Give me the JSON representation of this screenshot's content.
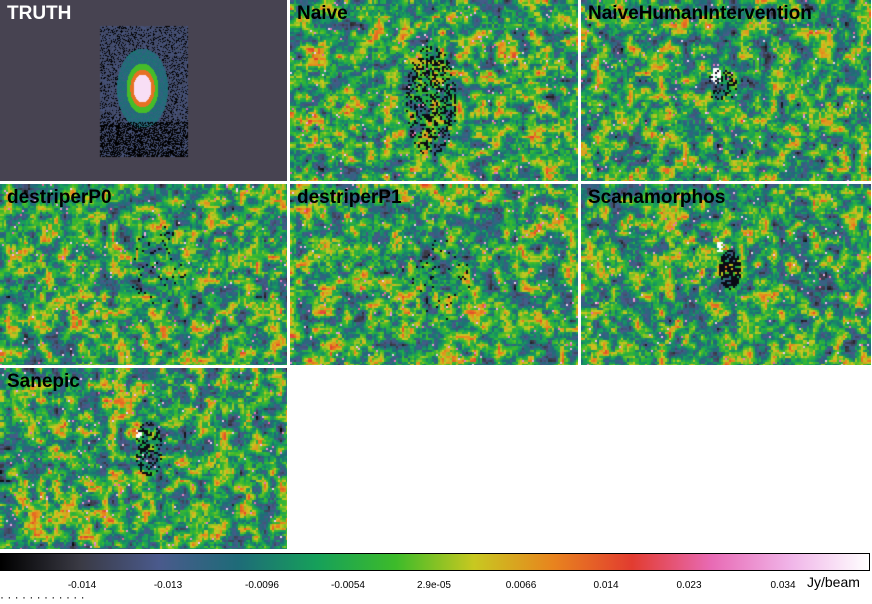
{
  "panels": [
    {
      "title": "TRUTH"
    },
    {
      "title": "Naive"
    },
    {
      "title": "NaiveHumanIntervention"
    },
    {
      "title": "destriperP0"
    },
    {
      "title": "destriperP1"
    },
    {
      "title": "Scanamorphos"
    },
    {
      "title": "Sanepic"
    }
  ],
  "colorbar": {
    "ticks": [
      "-0.014",
      "-0.013",
      "-0.0096",
      "-0.0054",
      "2.9e-05",
      "0.0066",
      "0.014",
      "0.023",
      "0.034"
    ],
    "unit": "Jy/beam",
    "colors": [
      "#000000",
      "#3a3a44",
      "#4a5a8c",
      "#1e6b78",
      "#16a05a",
      "#3dbb2a",
      "#c8c820",
      "#e8841e",
      "#e23c30",
      "#e86ab4",
      "#f0b4e8",
      "#ffffff"
    ]
  },
  "caption": "       ·    ·            ·          ·     ·    ·  ·  ·     ·  ·  · ·"
}
